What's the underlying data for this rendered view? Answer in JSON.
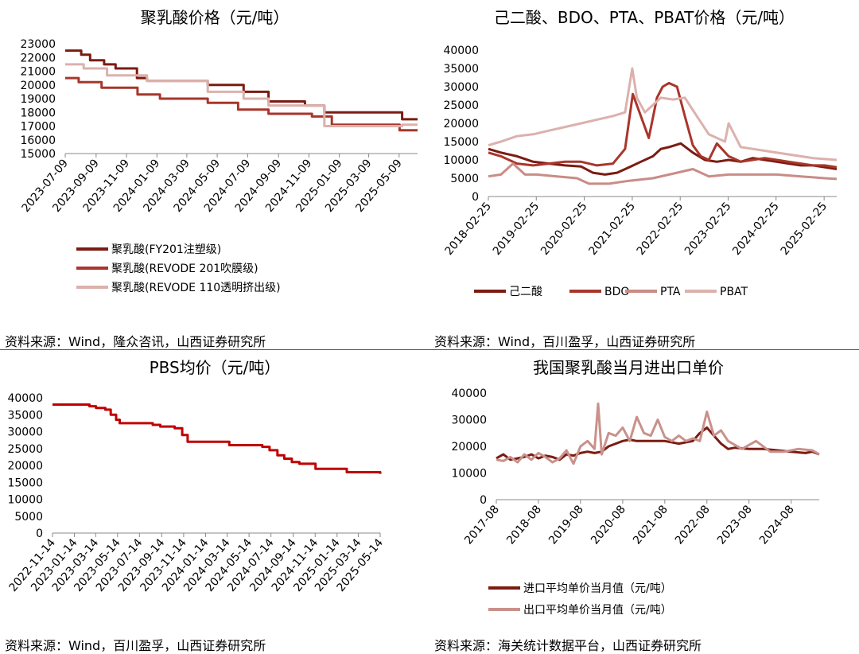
{
  "colors": {
    "dark_red": "#7b1c12",
    "mid_red": "#a8362c",
    "pink": "#c98c86",
    "light_pink": "#dcb1ad",
    "pbs_red": "#c00000",
    "import": "#7b1c12",
    "export": "#c9918b"
  },
  "chart_data": [
    {
      "id": "pla",
      "type": "line",
      "title": "聚乳酸价格（元/吨）",
      "source": "资料来源：Wind，隆众咨讯，山西证券研究所",
      "ylim": [
        15000,
        23000
      ],
      "yticks": [
        15000,
        16000,
        17000,
        18000,
        19000,
        20000,
        21000,
        22000,
        23000
      ],
      "xlim": [
        "2023-07-09",
        "2025-06-15"
      ],
      "xticks": [
        "2023-07-09",
        "2023-09-09",
        "2023-11-09",
        "2024-01-09",
        "2024-03-09",
        "2024-05-09",
        "2024-07-09",
        "2024-09-09",
        "2024-11-09",
        "2025-01-09",
        "2025-03-09",
        "2025-05-09"
      ],
      "legend_position": "bottom",
      "series": [
        {
          "name": "聚乳酸(FY201注塑级)",
          "color": "#7b1c12",
          "x": [
            "2023-07-09",
            "2023-08-10",
            "2023-08-28",
            "2023-09-25",
            "2023-10-18",
            "2023-11-30",
            "2023-12-20",
            "2024-04-20",
            "2024-07-01",
            "2024-08-20",
            "2024-11-01",
            "2024-12-10",
            "2025-04-25",
            "2025-05-15",
            "2025-06-15"
          ],
          "values": [
            22500,
            22200,
            21800,
            21500,
            21200,
            20500,
            20300,
            20000,
            19500,
            18800,
            18500,
            18000,
            18000,
            17500,
            17500
          ]
        },
        {
          "name": "聚乳酸(REVODE 201吹膜级)",
          "color": "#a8362c",
          "x": [
            "2023-07-09",
            "2023-08-05",
            "2023-09-20",
            "2023-12-01",
            "2024-01-15",
            "2024-04-20",
            "2024-06-20",
            "2024-08-20",
            "2024-11-15",
            "2024-12-25",
            "2025-05-10",
            "2025-06-15"
          ],
          "values": [
            20500,
            20200,
            19800,
            19300,
            19000,
            18700,
            18200,
            17900,
            17700,
            17100,
            16700,
            16700
          ]
        },
        {
          "name": "聚乳酸(REVODE 110透明挤出级)",
          "color": "#dcb1ad",
          "x": [
            "2023-07-09",
            "2023-08-15",
            "2023-10-01",
            "2023-12-20",
            "2024-04-20",
            "2024-07-01",
            "2024-08-20",
            "2024-12-10",
            "2025-04-25",
            "2025-05-15",
            "2025-06-15"
          ],
          "values": [
            21500,
            21200,
            20700,
            20300,
            19500,
            19000,
            18500,
            17000,
            17000,
            17100,
            17100
          ]
        }
      ]
    },
    {
      "id": "adipic",
      "type": "line",
      "title": "己二酸、BDO、PTA、PBAT价格（元/吨）",
      "source": "资料来源：Wind，百川盈孚，山西证券研究所",
      "ylim": [
        0,
        40000
      ],
      "yticks": [
        0,
        5000,
        10000,
        15000,
        20000,
        25000,
        30000,
        35000,
        40000
      ],
      "xlim": [
        "2018-02-25",
        "2025-06-01"
      ],
      "xticks": [
        "2018-02-25",
        "2019-02-25",
        "2020-02-25",
        "2021-02-25",
        "2022-02-25",
        "2023-02-25",
        "2024-02-25",
        "2025-02-25"
      ],
      "legend_position": "bottom",
      "series": [
        {
          "name": "己二酸",
          "color": "#7b1c12",
          "x": [
            "2018-02-25",
            "2018-06-01",
            "2018-10-01",
            "2019-02-01",
            "2019-06-01",
            "2019-10-01",
            "2020-02-01",
            "2020-05-01",
            "2020-08-01",
            "2020-11-01",
            "2021-02-01",
            "2021-05-01",
            "2021-08-01",
            "2021-10-01",
            "2021-12-01",
            "2022-03-01",
            "2022-06-01",
            "2022-09-01",
            "2022-12-01",
            "2023-03-01",
            "2023-06-01",
            "2023-09-01",
            "2023-12-01",
            "2024-03-01",
            "2024-06-01",
            "2024-09-01",
            "2024-12-01",
            "2025-03-01",
            "2025-06-01"
          ],
          "values": [
            13000,
            12000,
            11000,
            9500,
            9000,
            8500,
            8200,
            6500,
            6000,
            6500,
            8000,
            9500,
            11000,
            13000,
            13500,
            14500,
            12000,
            10000,
            9500,
            10000,
            9500,
            10500,
            10000,
            9500,
            9000,
            8500,
            8500,
            8000,
            7500
          ]
        },
        {
          "name": "BDO",
          "color": "#a8362c",
          "x": [
            "2018-02-25",
            "2018-06-01",
            "2018-10-01",
            "2019-02-01",
            "2019-06-01",
            "2019-10-01",
            "2020-02-01",
            "2020-06-01",
            "2020-10-01",
            "2021-01-01",
            "2021-03-01",
            "2021-05-01",
            "2021-07-01",
            "2021-09-01",
            "2021-10-15",
            "2021-12-01",
            "2022-02-01",
            "2022-04-01",
            "2022-06-01",
            "2022-08-01",
            "2022-10-01",
            "2022-12-01",
            "2023-03-01",
            "2023-06-01",
            "2023-09-01",
            "2023-12-01",
            "2024-03-01",
            "2024-06-01",
            "2024-09-01",
            "2024-12-01",
            "2025-03-01",
            "2025-06-01"
          ],
          "values": [
            12000,
            11000,
            9000,
            8500,
            9000,
            9500,
            9500,
            8500,
            9000,
            13000,
            28000,
            22000,
            16000,
            27000,
            30000,
            31000,
            30000,
            22000,
            14000,
            11000,
            10000,
            14500,
            11000,
            9500,
            10000,
            10500,
            10000,
            9500,
            9000,
            8500,
            8500,
            8000
          ]
        },
        {
          "name": "PTA",
          "color": "#c98c86",
          "x": [
            "2018-02-25",
            "2018-06-01",
            "2018-09-01",
            "2018-12-01",
            "2019-03-01",
            "2019-08-01",
            "2020-01-01",
            "2020-04-01",
            "2020-09-01",
            "2021-02-01",
            "2021-08-01",
            "2022-02-01",
            "2022-06-01",
            "2022-10-01",
            "2023-03-01",
            "2023-09-01",
            "2024-03-01",
            "2024-09-01",
            "2025-03-01",
            "2025-06-01"
          ],
          "values": [
            5500,
            6000,
            9000,
            6000,
            6000,
            5500,
            5000,
            3500,
            3500,
            4300,
            5000,
            6500,
            7500,
            5500,
            6000,
            6000,
            6000,
            5500,
            5000,
            4800
          ]
        },
        {
          "name": "PBAT",
          "color": "#dcb1ad",
          "x": [
            "2018-02-25",
            "2018-06-01",
            "2018-10-01",
            "2019-02-01",
            "2019-06-01",
            "2019-10-01",
            "2020-02-01",
            "2020-06-01",
            "2020-10-01",
            "2021-01-01",
            "2021-02-25",
            "2021-04-01",
            "2021-06-01",
            "2021-08-01",
            "2021-10-01",
            "2022-01-01",
            "2022-04-01",
            "2022-07-01",
            "2022-10-01",
            "2022-12-01",
            "2023-02-01",
            "2023-03-01",
            "2023-06-01",
            "2023-09-01",
            "2023-12-01",
            "2024-06-01",
            "2024-12-01",
            "2025-06-01"
          ],
          "values": [
            14000,
            15000,
            16500,
            17000,
            18000,
            19000,
            20000,
            21000,
            22000,
            23000,
            35000,
            27000,
            23000,
            25000,
            27000,
            26500,
            27000,
            22000,
            17000,
            16000,
            15000,
            20000,
            13500,
            13000,
            12500,
            11500,
            10500,
            10000
          ]
        }
      ]
    },
    {
      "id": "pbs",
      "type": "line",
      "title": "PBS均价（元/吨）",
      "source": "资料来源：Wind，百川盈孚，山西证券研究所",
      "ylim": [
        0,
        40000
      ],
      "yticks": [
        0,
        5000,
        10000,
        15000,
        20000,
        25000,
        30000,
        35000,
        40000
      ],
      "xlim": [
        "2022-11-14",
        "2025-05-14"
      ],
      "xticks": [
        "2022-11-14",
        "2023-01-14",
        "2023-03-14",
        "2023-05-14",
        "2023-07-14",
        "2023-09-14",
        "2023-11-14",
        "2024-01-14",
        "2024-03-14",
        "2024-05-14",
        "2024-07-14",
        "2024-09-14",
        "2024-11-14",
        "2025-01-14",
        "2025-03-14",
        "2025-05-14"
      ],
      "series": [
        {
          "name": "",
          "color": "#c00000",
          "x": [
            "2022-11-14",
            "2023-02-25",
            "2023-03-15",
            "2023-04-10",
            "2023-04-25",
            "2023-05-10",
            "2023-05-20",
            "2023-08-20",
            "2023-09-10",
            "2023-10-20",
            "2023-11-10",
            "2023-11-25",
            "2024-03-20",
            "2024-04-20",
            "2024-06-20",
            "2024-07-10",
            "2024-08-01",
            "2024-08-20",
            "2024-09-10",
            "2024-10-01",
            "2024-11-15",
            "2025-01-05",
            "2025-02-10",
            "2025-05-14"
          ],
          "values": [
            38000,
            37500,
            37000,
            36500,
            35000,
            33500,
            32500,
            32000,
            31500,
            31000,
            29000,
            27000,
            26000,
            26000,
            25500,
            24500,
            23000,
            22000,
            21000,
            20500,
            19000,
            19000,
            18000,
            17500
          ]
        }
      ]
    },
    {
      "id": "trade",
      "type": "line",
      "title": "我国聚乳酸当月进出口单价",
      "source": "资料来源：海关统计数据平台，山西证券研究所",
      "ylim": [
        0,
        40000
      ],
      "yticks": [
        0,
        10000,
        20000,
        30000,
        40000
      ],
      "xlim": [
        "2017-08",
        "2025-04"
      ],
      "xticks": [
        "2017-08",
        "2018-08",
        "2019-08",
        "2020-08",
        "2021-08",
        "2022-08",
        "2023-08",
        "2024-08"
      ],
      "legend_position": "bottom",
      "series": [
        {
          "name": "进口平均单价当月值（元/吨）",
          "color": "#7b1c12",
          "x": [
            "2017-08",
            "2017-10",
            "2017-12",
            "2018-02",
            "2018-04",
            "2018-06",
            "2018-08",
            "2018-10",
            "2018-12",
            "2019-02",
            "2019-04",
            "2019-06",
            "2019-08",
            "2019-10",
            "2019-12",
            "2020-02",
            "2020-04",
            "2020-06",
            "2020-08",
            "2020-10",
            "2020-12",
            "2021-04",
            "2021-08",
            "2021-12",
            "2022-04",
            "2022-06",
            "2022-08",
            "2022-10",
            "2022-12",
            "2023-02",
            "2023-04",
            "2023-08",
            "2023-12",
            "2024-04",
            "2024-08",
            "2024-12",
            "2025-02",
            "2025-04"
          ],
          "values": [
            15500,
            17000,
            15000,
            15500,
            16000,
            17000,
            15500,
            16500,
            16000,
            15000,
            17000,
            16500,
            17500,
            18000,
            17500,
            18000,
            20000,
            21000,
            22000,
            22500,
            22000,
            22000,
            22000,
            21000,
            22000,
            25000,
            27000,
            24000,
            21000,
            19000,
            19500,
            19000,
            19000,
            18500,
            18000,
            17500,
            18000,
            17000
          ]
        },
        {
          "name": "出口平均单价当月值（元/吨）",
          "color": "#c9918b",
          "x": [
            "2017-08",
            "2017-10",
            "2017-12",
            "2018-02",
            "2018-04",
            "2018-06",
            "2018-08",
            "2018-10",
            "2018-12",
            "2019-02",
            "2019-04",
            "2019-06",
            "2019-08",
            "2019-10",
            "2019-12",
            "2020-01",
            "2020-02",
            "2020-04",
            "2020-06",
            "2020-08",
            "2020-10",
            "2020-12",
            "2021-02",
            "2021-04",
            "2021-06",
            "2021-08",
            "2021-10",
            "2021-12",
            "2022-02",
            "2022-04",
            "2022-06",
            "2022-08",
            "2022-10",
            "2022-12",
            "2023-02",
            "2023-06",
            "2023-10",
            "2024-02",
            "2024-06",
            "2024-10",
            "2025-02",
            "2025-04"
          ],
          "values": [
            15000,
            14500,
            16000,
            14000,
            17000,
            15000,
            17500,
            16000,
            14000,
            15500,
            18500,
            13500,
            20000,
            22000,
            19000,
            36000,
            17000,
            25000,
            24000,
            27000,
            22000,
            31000,
            25000,
            24000,
            30000,
            23500,
            22000,
            24000,
            22000,
            23000,
            22000,
            33000,
            24000,
            26000,
            22000,
            19000,
            22000,
            18000,
            18000,
            19000,
            18500,
            17000
          ]
        }
      ]
    }
  ]
}
